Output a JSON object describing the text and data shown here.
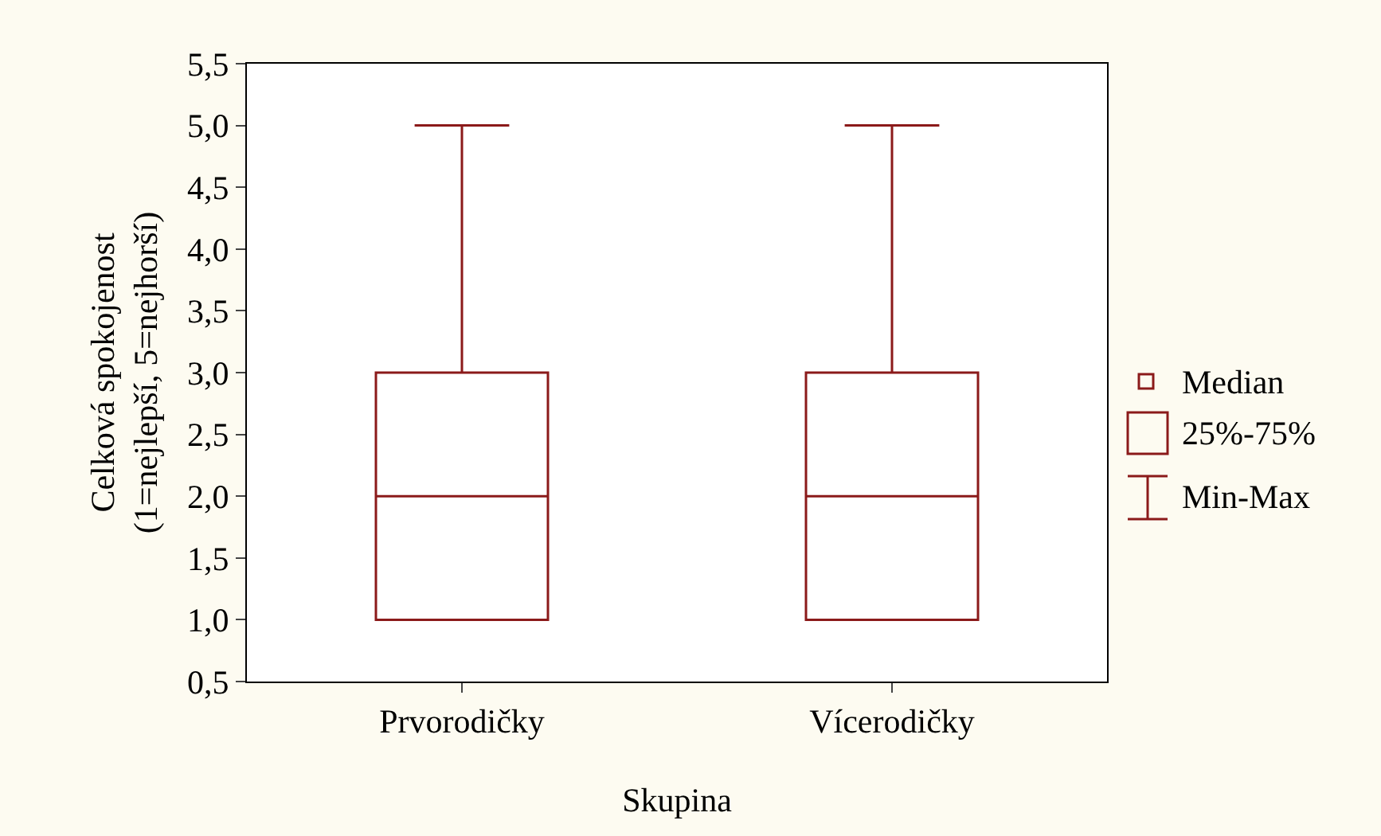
{
  "chart_data": {
    "type": "box",
    "categories": [
      "Prvorodičky",
      "Vícerodičky"
    ],
    "xlabel": "Skupina",
    "ylabel": "Celková spokojenost\n(1=nejlepší, 5=nejhorší)",
    "series": [
      {
        "color": "#8b1a1a",
        "boxes": [
          {
            "low": 1,
            "q1": 1,
            "median": 2,
            "q3": 3,
            "high": 5
          },
          {
            "low": 1,
            "q1": 1,
            "median": 2,
            "q3": 3,
            "high": 5
          }
        ]
      }
    ],
    "ylim": [
      0.5,
      5.5
    ],
    "yticks": [
      {
        "value": 0.5,
        "label": "0,5"
      },
      {
        "value": 1,
        "label": "1,0"
      },
      {
        "value": 1.5,
        "label": "1,5"
      },
      {
        "value": 2,
        "label": "2,0"
      },
      {
        "value": 2.5,
        "label": "2,5"
      },
      {
        "value": 3,
        "label": "3,0"
      },
      {
        "value": 3.5,
        "label": "3,5"
      },
      {
        "value": 4,
        "label": "4,0"
      },
      {
        "value": 4.5,
        "label": "4,5"
      },
      {
        "value": 5,
        "label": "5,0"
      },
      {
        "value": 5.5,
        "label": "5,5"
      }
    ],
    "annotations": [
      "Median",
      "25%-75%",
      "Min-Max"
    ],
    "grid": false
  }
}
